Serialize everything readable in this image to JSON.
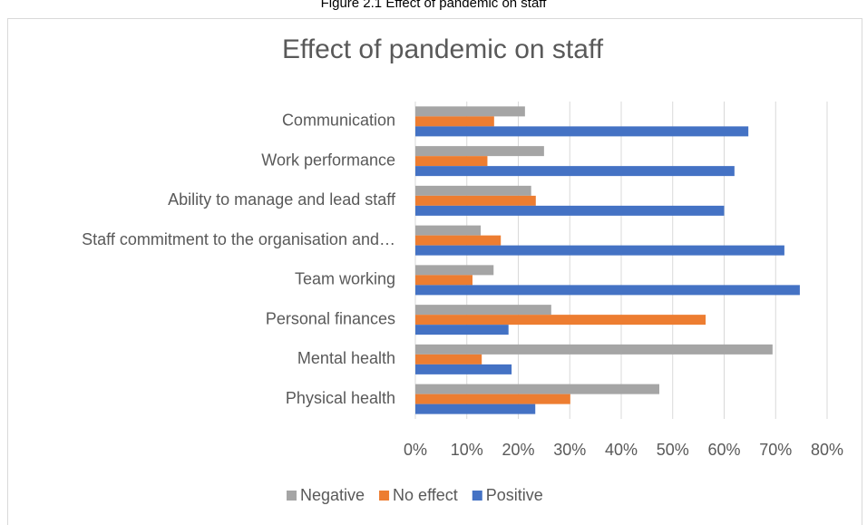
{
  "caption": "Figure 2.1 Effect of pandemic on staff",
  "chart_data": {
    "type": "hbar",
    "title": "Effect of pandemic on staff",
    "categories": [
      "Communication",
      "Work performance",
      "Ability to manage and lead staff",
      "Staff commitment to the organisation and…",
      "Team working",
      "Personal finances",
      "Mental health",
      "Physical health"
    ],
    "series": [
      {
        "name": "Negative",
        "color": "#a5a5a5",
        "values": [
          21.3,
          25,
          22.5,
          12.7,
          15.2,
          26.4,
          69.4,
          47.4
        ]
      },
      {
        "name": "No effect",
        "color": "#ed7d31",
        "values": [
          15.3,
          14,
          23.4,
          16.6,
          11.1,
          56.4,
          12.9,
          30.1
        ]
      },
      {
        "name": "Positive",
        "color": "#4472c4",
        "values": [
          64.7,
          62,
          60,
          71.7,
          74.7,
          18.1,
          18.7,
          23.3
        ]
      }
    ],
    "xlim": [
      0,
      80
    ],
    "xticks": [
      {
        "value": 0,
        "label": "0%"
      },
      {
        "value": 10,
        "label": "10%"
      },
      {
        "value": 20,
        "label": "20%"
      },
      {
        "value": 30,
        "label": "30%"
      },
      {
        "value": 40,
        "label": "40%"
      },
      {
        "value": 50,
        "label": "50%"
      },
      {
        "value": 60,
        "label": "60%"
      },
      {
        "value": 70,
        "label": "70%"
      },
      {
        "value": 80,
        "label": "80%"
      }
    ],
    "grid": true,
    "legend": "bottom"
  }
}
